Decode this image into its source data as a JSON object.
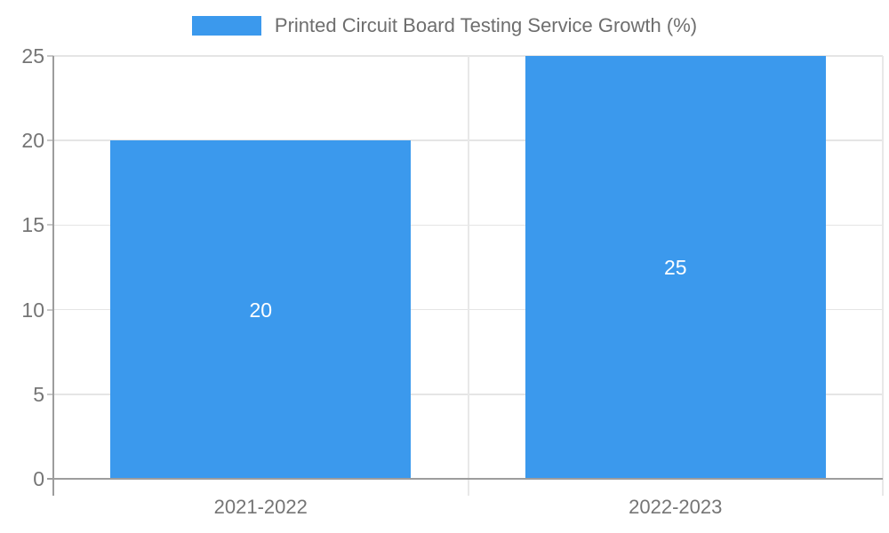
{
  "chart_data": {
    "type": "bar",
    "title": "Printed Circuit Board Testing Service Growth (%)",
    "categories": [
      "2021-2022",
      "2022-2023"
    ],
    "series": [
      {
        "name": "Printed Circuit Board Testing Service Growth (%)",
        "values": [
          20,
          25
        ],
        "color": "#3B99ED"
      }
    ],
    "value_labels": [
      "20",
      "25"
    ],
    "xlabel": "",
    "ylabel": "",
    "ylim": [
      0,
      25
    ],
    "yticks": [
      0,
      5,
      10,
      15,
      20,
      25
    ],
    "grid": true,
    "legend_position": "top",
    "colors": {
      "bar": "#3B99ED",
      "value_label": "#FFFFFF",
      "axis_text": "#757575",
      "legend_text": "#6E6E6E",
      "axis_line": "#9D9D9D",
      "gridline": "#E5E5E5",
      "boundary_line": "#E8E8E8",
      "tick": "#C8C8C8",
      "background": "#FFFFFF"
    }
  }
}
